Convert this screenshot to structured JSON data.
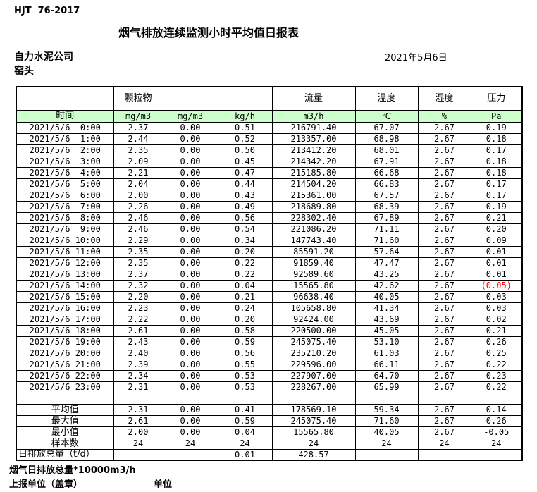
{
  "header": {
    "standard": "HJT  76-2017",
    "title": "烟气排放连续监测小时平均值日报表",
    "company": "自力水泥公司",
    "location": "窑头",
    "date": "2021年5月6日"
  },
  "table": {
    "group_headers": {
      "particulate": "颗粒物",
      "flow": "流量",
      "temperature": "温度",
      "humidity": "湿度",
      "pressure": "压力"
    },
    "unit_row": {
      "time": "时间",
      "units": [
        "mg/m3",
        "mg/m3",
        "kg/h",
        "m3/h",
        "℃",
        "%",
        "Pa"
      ]
    },
    "rows": [
      {
        "time": "2021/5/6  0:00",
        "values": [
          "2.37",
          "0.00",
          "0.51",
          "216791.40",
          "67.07",
          "2.67",
          "0.19"
        ]
      },
      {
        "time": "2021/5/6  1:00",
        "values": [
          "2.44",
          "0.00",
          "0.52",
          "213357.00",
          "68.98",
          "2.67",
          "0.18"
        ]
      },
      {
        "time": "2021/5/6  2:00",
        "values": [
          "2.35",
          "0.00",
          "0.50",
          "213412.20",
          "68.01",
          "2.67",
          "0.17"
        ]
      },
      {
        "time": "2021/5/6  3:00",
        "values": [
          "2.09",
          "0.00",
          "0.45",
          "214342.20",
          "67.91",
          "2.67",
          "0.18"
        ]
      },
      {
        "time": "2021/5/6  4:00",
        "values": [
          "2.21",
          "0.00",
          "0.47",
          "215185.80",
          "66.68",
          "2.67",
          "0.18"
        ]
      },
      {
        "time": "2021/5/6  5:00",
        "values": [
          "2.04",
          "0.00",
          "0.44",
          "214504.20",
          "66.83",
          "2.67",
          "0.17"
        ]
      },
      {
        "time": "2021/5/6  6:00",
        "values": [
          "2.00",
          "0.00",
          "0.43",
          "215361.00",
          "67.57",
          "2.67",
          "0.17"
        ]
      },
      {
        "time": "2021/5/6  7:00",
        "values": [
          "2.26",
          "0.00",
          "0.49",
          "218689.80",
          "68.39",
          "2.67",
          "0.19"
        ]
      },
      {
        "time": "2021/5/6  8:00",
        "values": [
          "2.46",
          "0.00",
          "0.56",
          "228302.40",
          "67.89",
          "2.67",
          "0.21"
        ]
      },
      {
        "time": "2021/5/6  9:00",
        "values": [
          "2.46",
          "0.00",
          "0.54",
          "221086.20",
          "71.11",
          "2.67",
          "0.20"
        ]
      },
      {
        "time": "2021/5/6 10:00",
        "values": [
          "2.29",
          "0.00",
          "0.34",
          "147743.40",
          "71.60",
          "2.67",
          "0.09"
        ]
      },
      {
        "time": "2021/5/6 11:00",
        "values": [
          "2.35",
          "0.00",
          "0.20",
          "85591.20",
          "57.64",
          "2.67",
          "0.01"
        ]
      },
      {
        "time": "2021/5/6 12:00",
        "values": [
          "2.35",
          "0.00",
          "0.22",
          "91859.40",
          "47.47",
          "2.67",
          "0.01"
        ]
      },
      {
        "time": "2021/5/6 13:00",
        "values": [
          "2.37",
          "0.00",
          "0.22",
          "92589.60",
          "43.25",
          "2.67",
          "0.01"
        ]
      },
      {
        "time": "2021/5/6 14:00",
        "values": [
          "2.32",
          "0.00",
          "0.04",
          "15565.80",
          "42.62",
          "2.67",
          "(0.05)"
        ]
      },
      {
        "time": "2021/5/6 15:00",
        "values": [
          "2.20",
          "0.00",
          "0.21",
          "96638.40",
          "40.05",
          "2.67",
          "0.03"
        ]
      },
      {
        "time": "2021/5/6 16:00",
        "values": [
          "2.23",
          "0.00",
          "0.24",
          "105658.80",
          "41.34",
          "2.67",
          "0.03"
        ]
      },
      {
        "time": "2021/5/6 17:00",
        "values": [
          "2.22",
          "0.00",
          "0.20",
          "92424.00",
          "43.69",
          "2.67",
          "0.02"
        ]
      },
      {
        "time": "2021/5/6 18:00",
        "values": [
          "2.61",
          "0.00",
          "0.58",
          "220500.00",
          "45.05",
          "2.67",
          "0.21"
        ]
      },
      {
        "time": "2021/5/6 19:00",
        "values": [
          "2.43",
          "0.00",
          "0.59",
          "245075.40",
          "53.10",
          "2.67",
          "0.26"
        ]
      },
      {
        "time": "2021/5/6 20:00",
        "values": [
          "2.40",
          "0.00",
          "0.56",
          "235210.20",
          "61.03",
          "2.67",
          "0.25"
        ]
      },
      {
        "time": "2021/5/6 21:00",
        "values": [
          "2.39",
          "0.00",
          "0.55",
          "229596.00",
          "66.11",
          "2.67",
          "0.22"
        ]
      },
      {
        "time": "2021/5/6 22:00",
        "values": [
          "2.34",
          "0.00",
          "0.53",
          "227907.00",
          "64.70",
          "2.67",
          "0.23"
        ]
      },
      {
        "time": "2021/5/6 23:00",
        "values": [
          "2.31",
          "0.00",
          "0.53",
          "228267.00",
          "65.99",
          "2.67",
          "0.22"
        ]
      }
    ],
    "summary": [
      {
        "label": "平均值",
        "values": [
          "2.31",
          "0.00",
          "0.41",
          "178569.10",
          "59.34",
          "2.67",
          "0.14"
        ]
      },
      {
        "label": "最大值",
        "values": [
          "2.61",
          "0.00",
          "0.59",
          "245075.40",
          "71.60",
          "2.67",
          "0.26"
        ]
      },
      {
        "label": "最小值",
        "values": [
          "2.00",
          "0.00",
          "0.04",
          "15565.80",
          "40.05",
          "2.67",
          "-0.05"
        ]
      },
      {
        "label": "样本数",
        "values": [
          "24",
          "24",
          "24",
          "24",
          "24",
          "24",
          "24"
        ]
      },
      {
        "label": "日排放总量（t/d）",
        "values": [
          "",
          "",
          "0.01",
          "428.57",
          "",
          "",
          ""
        ]
      }
    ]
  },
  "footer": {
    "note": "烟气日排放总量*10000m3/h",
    "report_unit": "上报单位（盖章）",
    "unit": "单位"
  },
  "colors": {
    "header_green": "#ccffcc",
    "negative_red": "#ff0000"
  }
}
